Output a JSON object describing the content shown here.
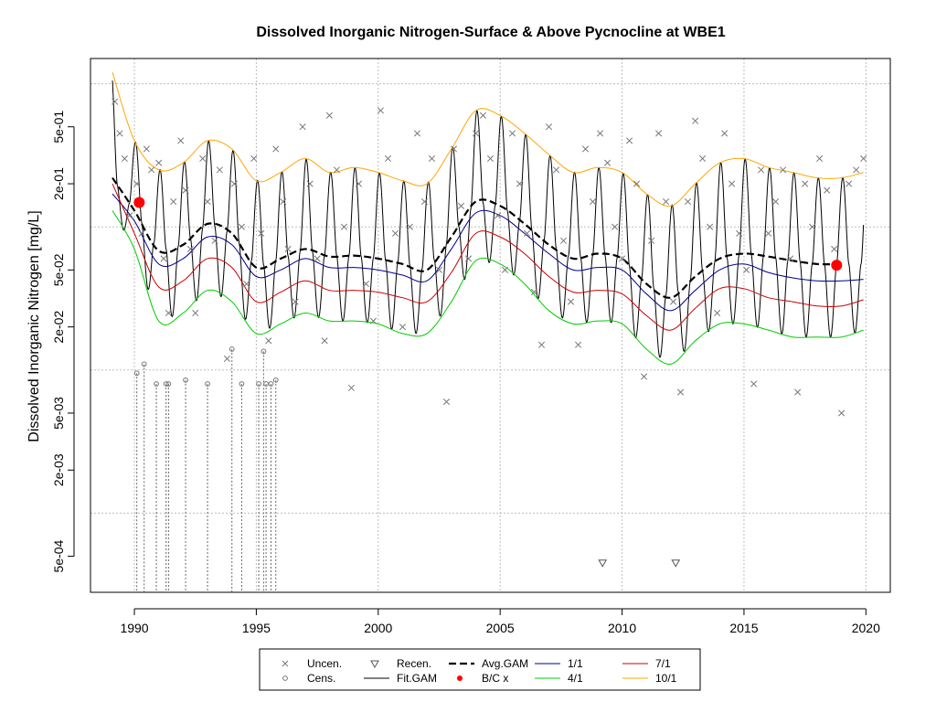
{
  "chart_data": {
    "type": "scatter",
    "title": "Dissolved Inorganic Nitrogen-Surface & Above Pycnocline at WBE1",
    "xlabel": "",
    "ylabel": "Dissolved Inorganic Nitrogen [mg/L]",
    "xlim": [
      1988.2,
      2021.0
    ],
    "ylim": [
      0.00028,
      1.5
    ],
    "y_scale": "log",
    "grid": true,
    "x_ticks": [
      1990,
      1995,
      2000,
      2005,
      2010,
      2015,
      2020
    ],
    "y_ticks": [
      {
        "value": 0.0005,
        "label": "5e-04"
      },
      {
        "value": 0.002,
        "label": "2e-03"
      },
      {
        "value": 0.005,
        "label": "5e-03"
      },
      {
        "value": 0.02,
        "label": "2e-02"
      },
      {
        "value": 0.05,
        "label": "5e-02"
      },
      {
        "value": 0.2,
        "label": "2e-01"
      },
      {
        "value": 0.5,
        "label": "5e-01"
      }
    ],
    "y_grid": [
      0.001,
      0.01,
      0.1,
      1.0
    ],
    "legend_position": "bottom",
    "legend": [
      {
        "label": "Uncen.",
        "kind": "x-marker",
        "color": "#777777"
      },
      {
        "label": "Cens.",
        "kind": "circle-marker",
        "color": "#777777"
      },
      {
        "label": "Recen.",
        "kind": "triangle-marker",
        "color": "#555555"
      },
      {
        "label": "Fit.GAM",
        "kind": "line",
        "color": "#000000"
      },
      {
        "label": "Avg.GAM",
        "kind": "dash-line",
        "color": "#000000"
      },
      {
        "label": "B/C x",
        "kind": "red-dot",
        "color": "#ff0000"
      },
      {
        "label": "1/1",
        "kind": "line",
        "color": "#00008b"
      },
      {
        "label": "4/1",
        "kind": "line",
        "color": "#00cc00"
      },
      {
        "label": "7/1",
        "kind": "line",
        "color": "#cc0000"
      },
      {
        "label": "10/1",
        "kind": "line",
        "color": "#ffa500"
      }
    ],
    "series": [
      {
        "key": "avg",
        "type": "line",
        "color": "#000000",
        "x": [
          1989.1,
          1990.0,
          1991.0,
          1992.0,
          1993.0,
          1994.0,
          1995.0,
          1996.0,
          1997.0,
          1998.0,
          1999.0,
          2000.0,
          2001.0,
          2002.0,
          2003.0,
          2004.0,
          2005.0,
          2006.0,
          2007.0,
          2008.0,
          2009.0,
          2010.0,
          2011.0,
          2012.0,
          2013.0,
          2014.0,
          2015.0,
          2016.0,
          2017.0,
          2018.0,
          2019.0
        ],
        "y": [
          0.22,
          0.13,
          0.068,
          0.075,
          0.105,
          0.09,
          0.052,
          0.06,
          0.07,
          0.062,
          0.063,
          0.06,
          0.055,
          0.05,
          0.085,
          0.15,
          0.14,
          0.105,
          0.075,
          0.06,
          0.065,
          0.06,
          0.04,
          0.032,
          0.045,
          0.06,
          0.065,
          0.062,
          0.058,
          0.055,
          0.055
        ]
      },
      {
        "key": "d0101",
        "type": "line",
        "color": "#00008b",
        "x": [
          1989.1,
          1990.0,
          1991.0,
          1992.0,
          1993.0,
          1994.0,
          1995.0,
          1996.0,
          1997.0,
          1998.0,
          1999.0,
          2000.0,
          2001.0,
          2002.0,
          2003.0,
          2004.0,
          2005.0,
          2006.0,
          2007.0,
          2008.0,
          2009.0,
          2010.0,
          2011.0,
          2012.0,
          2013.0,
          2014.0,
          2015.0,
          2016.0,
          2017.0,
          2018.0,
          2019.0,
          2019.9
        ],
        "y": [
          0.17,
          0.11,
          0.055,
          0.06,
          0.085,
          0.075,
          0.045,
          0.05,
          0.06,
          0.052,
          0.052,
          0.05,
          0.046,
          0.042,
          0.07,
          0.125,
          0.12,
          0.09,
          0.065,
          0.05,
          0.052,
          0.05,
          0.034,
          0.026,
          0.036,
          0.05,
          0.055,
          0.048,
          0.044,
          0.042,
          0.042,
          0.043
        ]
      },
      {
        "key": "d0701",
        "type": "line",
        "color": "#cc0000",
        "x": [
          1989.1,
          1990.0,
          1991.0,
          1992.0,
          1993.0,
          1994.0,
          1995.0,
          1996.0,
          1997.0,
          1998.0,
          1999.0,
          2000.0,
          2001.0,
          2002.0,
          2003.0,
          2004.0,
          2005.0,
          2006.0,
          2007.0,
          2008.0,
          2009.0,
          2010.0,
          2011.0,
          2012.0,
          2013.0,
          2014.0,
          2015.0,
          2016.0,
          2017.0,
          2018.0,
          2019.0,
          2019.9
        ],
        "y": [
          0.2,
          0.09,
          0.038,
          0.042,
          0.06,
          0.052,
          0.03,
          0.035,
          0.042,
          0.036,
          0.036,
          0.035,
          0.032,
          0.03,
          0.048,
          0.09,
          0.085,
          0.065,
          0.045,
          0.035,
          0.036,
          0.034,
          0.024,
          0.019,
          0.027,
          0.037,
          0.037,
          0.032,
          0.03,
          0.028,
          0.028,
          0.031
        ]
      },
      {
        "key": "d0401",
        "type": "line",
        "color": "#00cc00",
        "x": [
          1989.1,
          1990.0,
          1991.0,
          1992.0,
          1993.0,
          1994.0,
          1995.0,
          1996.0,
          1997.0,
          1998.0,
          1999.0,
          2000.0,
          2001.0,
          2002.0,
          2003.0,
          2004.0,
          2005.0,
          2006.0,
          2007.0,
          2008.0,
          2009.0,
          2010.0,
          2011.0,
          2012.0,
          2013.0,
          2014.0,
          2015.0,
          2016.0,
          2017.0,
          2018.0,
          2019.0,
          2019.9
        ],
        "y": [
          0.13,
          0.07,
          0.022,
          0.025,
          0.036,
          0.03,
          0.018,
          0.021,
          0.025,
          0.022,
          0.022,
          0.021,
          0.018,
          0.018,
          0.03,
          0.058,
          0.055,
          0.04,
          0.026,
          0.021,
          0.022,
          0.021,
          0.014,
          0.011,
          0.016,
          0.021,
          0.021,
          0.019,
          0.017,
          0.017,
          0.017,
          0.019
        ]
      },
      {
        "key": "d1001",
        "type": "line",
        "color": "#ffa500",
        "x": [
          1989.1,
          1990.0,
          1991.0,
          1992.0,
          1993.0,
          1994.0,
          1995.0,
          1996.0,
          1997.0,
          1998.0,
          1999.0,
          2000.0,
          2001.0,
          2002.0,
          2003.0,
          2004.0,
          2005.0,
          2006.0,
          2007.0,
          2008.0,
          2009.0,
          2010.0,
          2011.0,
          2012.0,
          2013.0,
          2014.0,
          2015.0,
          2016.0,
          2017.0,
          2018.0,
          2019.0,
          2019.9
        ],
        "y": [
          1.2,
          0.4,
          0.25,
          0.28,
          0.4,
          0.35,
          0.21,
          0.24,
          0.3,
          0.24,
          0.26,
          0.24,
          0.21,
          0.2,
          0.35,
          0.65,
          0.6,
          0.45,
          0.32,
          0.24,
          0.26,
          0.24,
          0.17,
          0.14,
          0.2,
          0.28,
          0.3,
          0.26,
          0.24,
          0.22,
          0.22,
          0.24
        ]
      },
      {
        "key": "uncen",
        "type": "scatter",
        "marker": "x",
        "color": "#777777",
        "x": [
          1989.2,
          1989.4,
          1989.6,
          1989.8,
          1990.1,
          1990.3,
          1990.5,
          1990.7,
          1991.0,
          1991.2,
          1991.4,
          1991.6,
          1991.9,
          1992.1,
          1992.3,
          1992.5,
          1992.8,
          1993.0,
          1993.3,
          1993.5,
          1993.8,
          1994.1,
          1994.4,
          1994.6,
          1994.9,
          1995.2,
          1995.5,
          1995.8,
          1996.1,
          1996.3,
          1996.6,
          1996.9,
          1997.2,
          1997.5,
          1997.8,
          1998.0,
          1998.3,
          1998.6,
          1998.9,
          1999.2,
          1999.5,
          1999.8,
          2000.1,
          2000.4,
          2000.7,
          2001.0,
          2001.3,
          2001.6,
          2001.9,
          2002.2,
          2002.5,
          2002.8,
          2003.1,
          2003.4,
          2003.7,
          2004.0,
          2004.3,
          2004.6,
          2004.9,
          2005.2,
          2005.5,
          2005.8,
          2006.1,
          2006.4,
          2006.7,
          2007.0,
          2007.3,
          2007.6,
          2007.9,
          2008.2,
          2008.5,
          2008.8,
          2009.1,
          2009.4,
          2009.7,
          2010.0,
          2010.3,
          2010.6,
          2010.9,
          2011.2,
          2011.5,
          2011.8,
          2012.1,
          2012.4,
          2012.7,
          2013.0,
          2013.3,
          2013.6,
          2013.9,
          2014.2,
          2014.5,
          2014.8,
          2015.1,
          2015.4,
          2015.7,
          2016.0,
          2016.3,
          2016.6,
          2016.9,
          2017.2,
          2017.5,
          2017.8,
          2018.1,
          2018.4,
          2018.7,
          2019.0,
          2019.3,
          2019.6,
          2019.9
        ],
        "y": [
          0.75,
          0.45,
          0.3,
          0.12,
          0.2,
          0.09,
          0.35,
          0.25,
          0.28,
          0.06,
          0.025,
          0.15,
          0.4,
          0.18,
          0.07,
          0.025,
          0.3,
          0.15,
          0.08,
          0.25,
          0.012,
          0.2,
          0.1,
          0.04,
          0.3,
          0.09,
          0.016,
          0.35,
          0.15,
          0.07,
          0.03,
          0.5,
          0.2,
          0.06,
          0.016,
          0.6,
          0.25,
          0.1,
          0.0075,
          0.2,
          0.04,
          0.022,
          0.65,
          0.3,
          0.09,
          0.02,
          0.1,
          0.45,
          0.15,
          0.3,
          0.05,
          0.006,
          0.35,
          0.14,
          0.06,
          0.45,
          0.6,
          0.3,
          0.12,
          0.05,
          0.45,
          0.2,
          0.09,
          0.035,
          0.015,
          0.5,
          0.25,
          0.08,
          0.03,
          0.015,
          0.35,
          0.15,
          0.45,
          0.28,
          0.1,
          0.06,
          0.4,
          0.2,
          0.009,
          0.08,
          0.45,
          0.15,
          0.03,
          0.007,
          0.15,
          0.55,
          0.3,
          0.1,
          0.025,
          0.45,
          0.2,
          0.09,
          0.05,
          0.008,
          0.25,
          0.09,
          0.15,
          0.25,
          0.06,
          0.007,
          0.2,
          0.1,
          0.3,
          0.18,
          0.07,
          0.005,
          0.2,
          0.25,
          0.3
        ]
      },
      {
        "key": "cens",
        "type": "scatter",
        "marker": "circle",
        "color": "#777777",
        "x": [
          1990.1,
          1990.4,
          1990.9,
          1991.3,
          1991.4,
          1992.1,
          1993.0,
          1994.0,
          1994.4,
          1995.1,
          1995.3,
          1995.4,
          1995.6,
          1995.8
        ],
        "y": [
          0.0095,
          0.011,
          0.008,
          0.008,
          0.008,
          0.0085,
          0.008,
          0.014,
          0.008,
          0.008,
          0.0135,
          0.008,
          0.008,
          0.0085
        ]
      },
      {
        "key": "recen",
        "type": "scatter",
        "marker": "triangle",
        "color": "#555555",
        "x": [
          2009.2,
          2012.2
        ],
        "y": [
          0.00045,
          0.00045
        ]
      },
      {
        "key": "bc",
        "type": "scatter",
        "marker": "red-dot",
        "color": "#ff0000",
        "x": [
          1990.2,
          2018.8
        ],
        "y": [
          0.148,
          0.054
        ]
      }
    ]
  }
}
